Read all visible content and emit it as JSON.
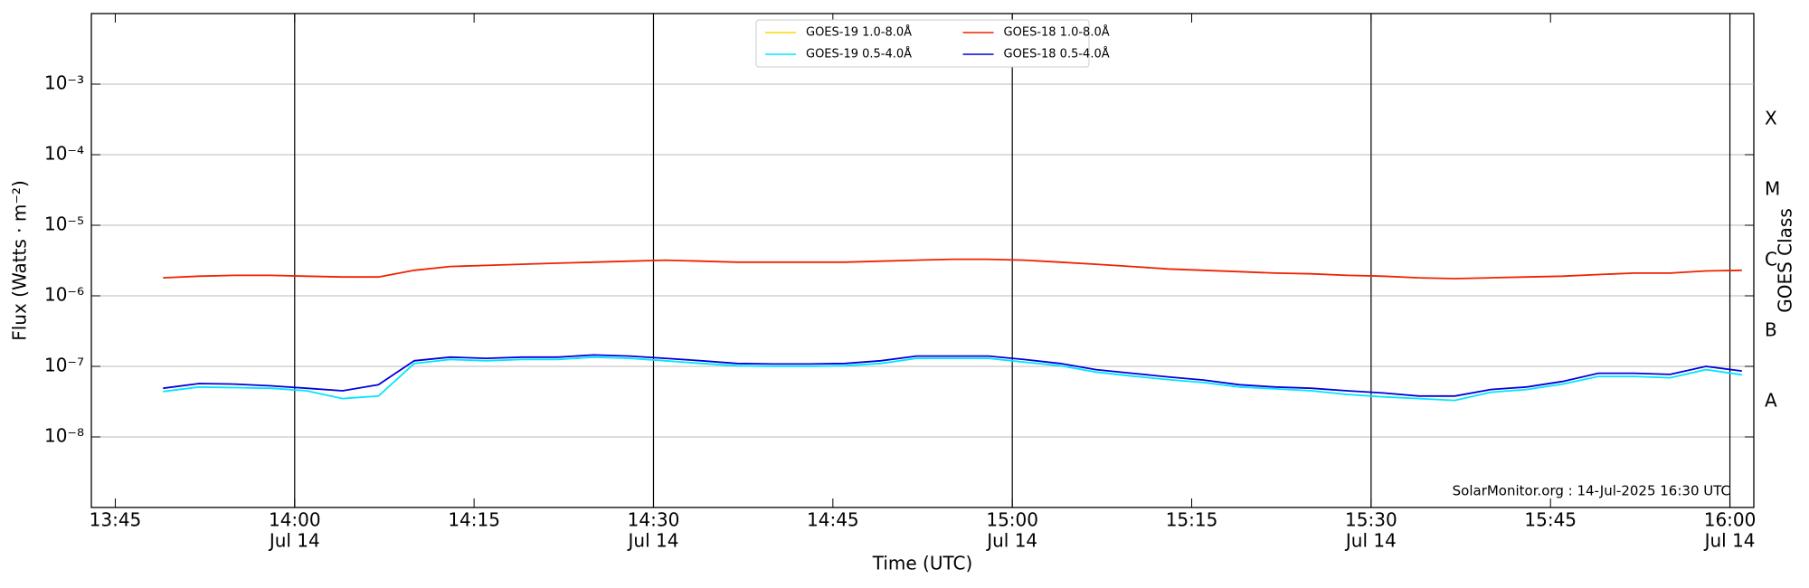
{
  "chart_data": {
    "type": "line",
    "ylabel": "Flux (Watts · m⁻²)",
    "xlabel": "Time (UTC)",
    "y2label": "GOES Class",
    "annotation": "SolarMonitor.org : 14-Jul-2025 16:30 UTC",
    "log_y": true,
    "grid": true,
    "legend": "top center",
    "ylim": [
      1e-09,
      0.01
    ],
    "yticks": [
      {
        "value": 1e-08,
        "label": "10⁻⁸"
      },
      {
        "value": 1e-07,
        "label": "10⁻⁷"
      },
      {
        "value": 1e-06,
        "label": "10⁻⁶"
      },
      {
        "value": 1e-05,
        "label": "10⁻⁵"
      },
      {
        "value": 0.0001,
        "label": "10⁻⁴"
      },
      {
        "value": 0.001,
        "label": "10⁻³"
      }
    ],
    "y2ticks": [
      {
        "value": 1e-08,
        "label": "A"
      },
      {
        "value": 1e-07,
        "label": "B"
      },
      {
        "value": 1e-06,
        "label": "C"
      },
      {
        "value": 1e-05,
        "label": "M"
      },
      {
        "value": 0.0001,
        "label": "X"
      }
    ],
    "xlim": [
      "13:43",
      "16:02"
    ],
    "xticks": [
      "13:45",
      {
        "value": "14:00",
        "label": "14:00",
        "date": "Jul 14"
      },
      "14:15",
      {
        "value": "14:30",
        "label": "14:30",
        "date": "Jul 14"
      },
      "14:45",
      {
        "value": "15:00",
        "label": "15:00",
        "date": "Jul 14"
      },
      "15:15",
      {
        "value": "15:30",
        "label": "15:30",
        "date": "Jul 14"
      },
      "15:45",
      {
        "value": "16:00",
        "label": "16:00",
        "date": "Jul 14"
      }
    ],
    "vlines": [
      "14:00",
      "14:30",
      "15:00",
      "15:30",
      "16:00"
    ],
    "x": [
      "13:49",
      "13:52",
      "13:55",
      "13:58",
      "14:01",
      "14:04",
      "14:07",
      "14:10",
      "14:13",
      "14:16",
      "14:19",
      "14:22",
      "14:25",
      "14:28",
      "14:31",
      "14:34",
      "14:37",
      "14:40",
      "14:43",
      "14:46",
      "14:49",
      "14:52",
      "14:55",
      "14:58",
      "15:01",
      "15:04",
      "15:07",
      "15:10",
      "15:13",
      "15:16",
      "15:19",
      "15:22",
      "15:25",
      "15:28",
      "15:31",
      "15:34",
      "15:37",
      "15:40",
      "15:43",
      "15:46",
      "15:49",
      "15:52",
      "15:55",
      "15:58",
      "16:01"
    ],
    "series": [
      {
        "name": "GOES-19 1.0-8.0Å",
        "color": "#ffd700",
        "values": [
          null,
          null,
          null,
          null,
          null,
          null,
          null,
          null,
          null,
          null,
          null,
          null,
          null,
          null,
          null,
          null,
          null,
          null,
          null,
          null,
          null,
          null,
          null,
          null,
          null,
          null,
          null,
          null,
          null,
          null,
          null,
          null,
          null,
          null,
          null,
          null,
          null,
          null,
          null,
          null,
          null,
          null,
          null,
          null,
          null
        ]
      },
      {
        "name": "GOES-19 0.5-4.0Å",
        "color": "#00e5ff",
        "values": [
          4.4e-08,
          5.1e-08,
          5e-08,
          4.9e-08,
          4.5e-08,
          3.5e-08,
          3.8e-08,
          1.1e-07,
          1.25e-07,
          1.2e-07,
          1.25e-07,
          1.25e-07,
          1.35e-07,
          1.3e-07,
          1.2e-07,
          1.1e-07,
          1.02e-07,
          1e-07,
          1e-07,
          1.02e-07,
          1.1e-07,
          1.3e-07,
          1.3e-07,
          1.3e-07,
          1.15e-07,
          1.02e-07,
          8.3e-08,
          7.3e-08,
          6.5e-08,
          5.9e-08,
          5.1e-08,
          4.8e-08,
          4.5e-08,
          4e-08,
          3.7e-08,
          3.5e-08,
          3.3e-08,
          4.3e-08,
          4.7e-08,
          5.6e-08,
          7.2e-08,
          7.2e-08,
          6.9e-08,
          9e-08,
          7.6e-08
        ]
      },
      {
        "name": "GOES-18 1.0-8.0Å",
        "color": "#ee2200",
        "values": [
          1.8e-06,
          1.9e-06,
          1.95e-06,
          1.95e-06,
          1.9e-06,
          1.85e-06,
          1.85e-06,
          2.3e-06,
          2.6e-06,
          2.7e-06,
          2.8e-06,
          2.9e-06,
          3e-06,
          3.1e-06,
          3.2e-06,
          3.1e-06,
          3e-06,
          3e-06,
          3e-06,
          3e-06,
          3.1e-06,
          3.2e-06,
          3.3e-06,
          3.3e-06,
          3.2e-06,
          3e-06,
          2.8e-06,
          2.6e-06,
          2.4e-06,
          2.3e-06,
          2.2e-06,
          2.1e-06,
          2.05e-06,
          1.95e-06,
          1.9e-06,
          1.8e-06,
          1.75e-06,
          1.8e-06,
          1.85e-06,
          1.9e-06,
          2e-06,
          2.1e-06,
          2.1e-06,
          2.25e-06,
          2.3e-06
        ]
      },
      {
        "name": "GOES-18 0.5-4.0Å",
        "color": "#0000dd",
        "values": [
          4.9e-08,
          5.7e-08,
          5.6e-08,
          5.3e-08,
          4.9e-08,
          4.5e-08,
          5.5e-08,
          1.2e-07,
          1.35e-07,
          1.3e-07,
          1.35e-07,
          1.35e-07,
          1.45e-07,
          1.4e-07,
          1.3e-07,
          1.2e-07,
          1.1e-07,
          1.08e-07,
          1.08e-07,
          1.1e-07,
          1.2e-07,
          1.4e-07,
          1.4e-07,
          1.4e-07,
          1.25e-07,
          1.1e-07,
          9e-08,
          8e-08,
          7.1e-08,
          6.4e-08,
          5.5e-08,
          5.1e-08,
          4.9e-08,
          4.5e-08,
          4.2e-08,
          3.8e-08,
          3.8e-08,
          4.7e-08,
          5.1e-08,
          6.1e-08,
          8e-08,
          8e-08,
          7.7e-08,
          1e-07,
          8.6e-08
        ]
      }
    ]
  }
}
